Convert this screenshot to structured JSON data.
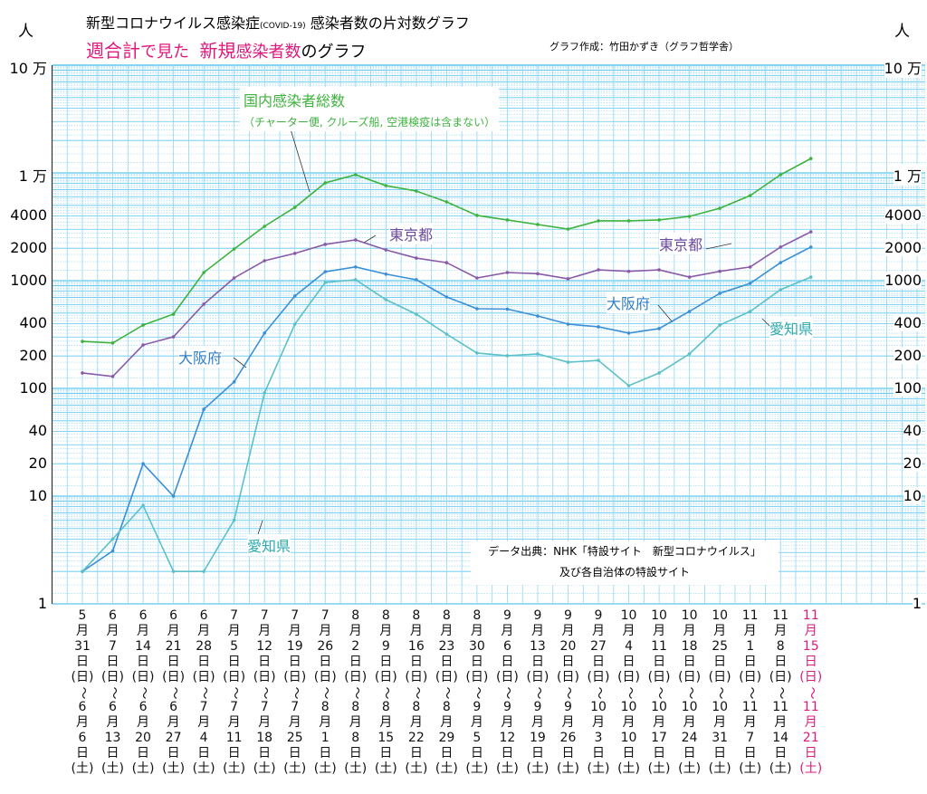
{
  "header": {
    "title": "新型コロナウイルス感染症",
    "title_covid": "(COVID-19)",
    "title_rest": "感染者数の片対数グラフ",
    "subtitle_a": "週合計",
    "subtitle_b": "で見た",
    "subtitle_c": "新規",
    "subtitle_d": "感染者数",
    "subtitle_e": "のグラフ",
    "author": "グラフ作成：竹田かずき（グラフ哲学舎）",
    "unit": "人"
  },
  "source": {
    "line1": "データ出典：NHK「特設サイト　新型コロナウイルス」",
    "line2": "及び各自治体の特設サイト"
  },
  "colors": {
    "national": "#3db33d",
    "tokyo": "#8a5aa8",
    "osaka": "#3a8fd6",
    "aichi": "#5cc0c8",
    "highlight": "#e0197d",
    "grid": "#5cc6ef"
  },
  "chart_data": {
    "type": "line",
    "title": "新型コロナウイルス感染症(COVID-19) 感染者数の片対数グラフ",
    "yscale": "log",
    "ylim": [
      1,
      100000
    ],
    "yticks": [
      {
        "v": 1,
        "l": "1"
      },
      {
        "v": 10,
        "l": "10"
      },
      {
        "v": 20,
        "l": "20"
      },
      {
        "v": 40,
        "l": "40"
      },
      {
        "v": 100,
        "l": "100"
      },
      {
        "v": 200,
        "l": "200"
      },
      {
        "v": 400,
        "l": "400"
      },
      {
        "v": 1000,
        "l": "1000"
      },
      {
        "v": 2000,
        "l": "2000"
      },
      {
        "v": 4000,
        "l": "4000"
      },
      {
        "v": 10000,
        "l": "1 万"
      },
      {
        "v": 100000,
        "l": "10 万"
      }
    ],
    "categories": [
      [
        "5",
        "31",
        "6",
        "6"
      ],
      [
        "6",
        "7",
        "6",
        "13"
      ],
      [
        "6",
        "14",
        "6",
        "20"
      ],
      [
        "6",
        "21",
        "6",
        "27"
      ],
      [
        "6",
        "28",
        "7",
        "4"
      ],
      [
        "7",
        "5",
        "7",
        "11"
      ],
      [
        "7",
        "12",
        "7",
        "18"
      ],
      [
        "7",
        "19",
        "7",
        "25"
      ],
      [
        "7",
        "26",
        "8",
        "1"
      ],
      [
        "8",
        "2",
        "8",
        "8"
      ],
      [
        "8",
        "9",
        "8",
        "15"
      ],
      [
        "8",
        "16",
        "8",
        "22"
      ],
      [
        "8",
        "23",
        "8",
        "29"
      ],
      [
        "8",
        "30",
        "9",
        "5"
      ],
      [
        "9",
        "6",
        "9",
        "12"
      ],
      [
        "9",
        "13",
        "9",
        "19"
      ],
      [
        "9",
        "20",
        "9",
        "26"
      ],
      [
        "9",
        "27",
        "10",
        "3"
      ],
      [
        "10",
        "4",
        "10",
        "10"
      ],
      [
        "10",
        "11",
        "10",
        "17"
      ],
      [
        "10",
        "18",
        "10",
        "24"
      ],
      [
        "10",
        "25",
        "10",
        "31"
      ],
      [
        "11",
        "1",
        "11",
        "7"
      ],
      [
        "11",
        "8",
        "11",
        "14"
      ],
      [
        "11",
        "15",
        "11",
        "21"
      ]
    ],
    "xlabel_parts": {
      "month": "月",
      "day": "日",
      "sun": "(日)",
      "sep": "〜",
      "sat": "(土)"
    },
    "series": [
      {
        "name": "国内感染者総数",
        "note": "（チャーター便, クルーズ船, 空港検疫は含まない）",
        "color_key": "national",
        "values": [
          273,
          264,
          387,
          489,
          1190,
          1968,
          3193,
          4790,
          8090,
          9620,
          7620,
          6790,
          5380,
          4030,
          3660,
          3320,
          3010,
          3590,
          3590,
          3660,
          3950,
          4700,
          6160,
          9620,
          13600
        ]
      },
      {
        "name": "東京都",
        "color_key": "tokyo",
        "values": [
          139,
          129,
          253,
          301,
          605,
          1060,
          1530,
          1790,
          2170,
          2390,
          1930,
          1620,
          1470,
          1060,
          1190,
          1160,
          1040,
          1260,
          1220,
          1260,
          1080,
          1220,
          1340,
          2050,
          2840
        ]
      },
      {
        "name": "大阪府",
        "color_key": "osaka",
        "values": [
          2,
          3.1,
          20,
          10,
          64,
          115,
          326,
          720,
          1210,
          1340,
          1150,
          1020,
          706,
          549,
          545,
          470,
          395,
          373,
          326,
          359,
          518,
          763,
          944,
          1470,
          2050
        ]
      },
      {
        "name": "愛知県",
        "color_key": "aichi",
        "values": [
          2,
          4,
          8.2,
          2,
          2,
          6,
          91,
          395,
          962,
          1020,
          666,
          489,
          319,
          213,
          201,
          209,
          175,
          182,
          106,
          139,
          209,
          387,
          518,
          824,
          1080
        ]
      }
    ]
  }
}
